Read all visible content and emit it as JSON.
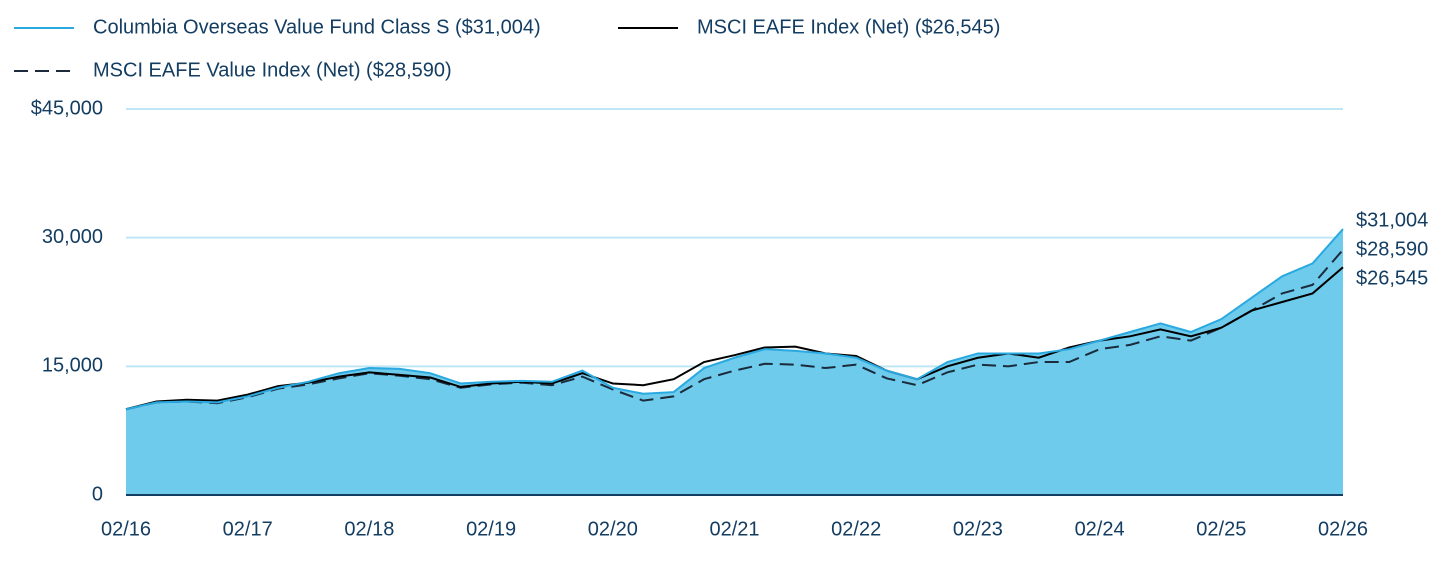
{
  "chart_data": {
    "type": "area-line",
    "categories": [
      "02/16",
      null,
      null,
      null,
      "02/17",
      null,
      null,
      null,
      "02/18",
      null,
      null,
      null,
      "02/19",
      null,
      null,
      null,
      "02/20",
      null,
      null,
      null,
      "02/21",
      null,
      null,
      null,
      "02/22",
      null,
      null,
      null,
      "02/23",
      null,
      null,
      null,
      "02/24",
      null,
      null,
      null,
      "02/25",
      null,
      null,
      null,
      "02/26"
    ],
    "series": [
      {
        "name": "Columbia Overseas Value Fund Class S ($31,004)",
        "color": "#29a9e0",
        "fill": "#6ecbec",
        "style": "area",
        "values": [
          10000,
          10800,
          10900,
          10800,
          11500,
          12500,
          13200,
          14200,
          14800,
          14700,
          14200,
          13000,
          13200,
          13300,
          13200,
          14500,
          12500,
          11800,
          12000,
          14800,
          16000,
          17000,
          16800,
          16500,
          16000,
          14500,
          13500,
          15500,
          16500,
          16500,
          16500,
          17000,
          18000,
          19000,
          20000,
          19000,
          20500,
          23000,
          25500,
          27000,
          31004
        ],
        "value_labels": [
          null,
          null,
          null,
          null,
          null,
          null,
          null,
          null,
          null,
          null,
          null,
          null,
          null,
          null,
          null,
          null,
          null,
          null,
          null,
          null,
          null,
          null,
          null,
          null,
          null,
          null,
          null,
          null,
          null,
          null,
          null,
          null,
          null,
          null,
          null,
          null,
          null,
          null,
          null,
          null,
          "$31,004"
        ]
      },
      {
        "name": "MSCI EAFE Index (Net) ($26,545)",
        "color": "#000000",
        "style": "solid",
        "values": [
          10000,
          10900,
          11100,
          11000,
          11700,
          12700,
          13100,
          13800,
          14300,
          14000,
          13700,
          12600,
          13000,
          13200,
          13000,
          14200,
          13000,
          12800,
          13500,
          15500,
          16300,
          17200,
          17300,
          16500,
          16200,
          14500,
          13500,
          15000,
          16000,
          16500,
          16000,
          17200,
          18000,
          18500,
          19300,
          18500,
          19500,
          21500,
          22500,
          23500,
          26545
        ],
        "value_labels": [
          null,
          null,
          null,
          null,
          null,
          null,
          null,
          null,
          null,
          null,
          null,
          null,
          null,
          null,
          null,
          null,
          null,
          null,
          null,
          null,
          null,
          null,
          null,
          null,
          null,
          null,
          null,
          null,
          null,
          null,
          null,
          null,
          null,
          null,
          null,
          null,
          null,
          null,
          null,
          null,
          "$26,545"
        ]
      },
      {
        "name": "MSCI EAFE Value Index (Net) ($28,590)",
        "color": "#1b2b3c",
        "style": "dashed",
        "values": [
          10000,
          10800,
          10900,
          10700,
          11400,
          12400,
          12900,
          13600,
          14200,
          13900,
          13500,
          12500,
          12900,
          13100,
          12800,
          13800,
          12300,
          11000,
          11500,
          13500,
          14500,
          15300,
          15200,
          14800,
          15200,
          13600,
          12800,
          14300,
          15200,
          15000,
          15500,
          15500,
          17000,
          17500,
          18500,
          18000,
          19500,
          21500,
          23500,
          24500,
          28590
        ],
        "value_labels": [
          null,
          null,
          null,
          null,
          null,
          null,
          null,
          null,
          null,
          null,
          null,
          null,
          null,
          null,
          null,
          null,
          null,
          null,
          null,
          null,
          null,
          null,
          null,
          null,
          null,
          null,
          null,
          null,
          null,
          null,
          null,
          null,
          null,
          null,
          null,
          null,
          null,
          null,
          null,
          null,
          "$28,590"
        ]
      }
    ],
    "ylim": [
      0,
      45000
    ],
    "yticks": [
      0,
      {
        "value": 15000,
        "label": "15,000"
      },
      {
        "value": 30000,
        "label": "30,000"
      },
      {
        "value": 45000,
        "label": "$45,000"
      }
    ],
    "grid": true
  }
}
